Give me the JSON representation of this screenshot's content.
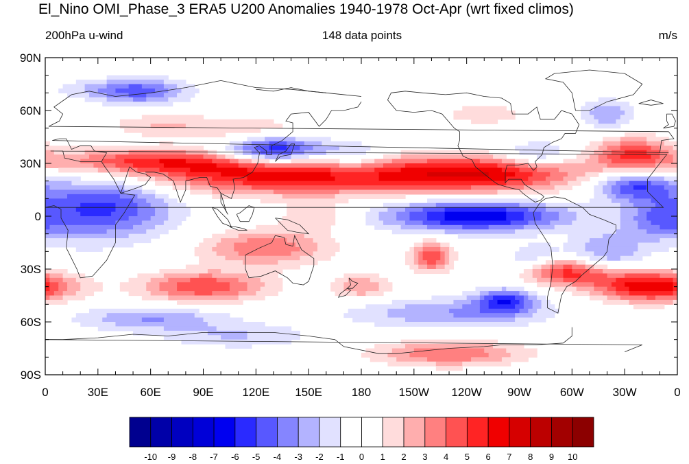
{
  "title": "El_Nino OMI_Phase_3 ERA5 U200 Anomalies 1940-1978 Oct-Apr (wrt fixed climos)",
  "subtitle_left": "200hPa u-wind",
  "subtitle_center": "148 data points",
  "subtitle_right": "m/s",
  "chart_data": {
    "type": "heatmap",
    "title": "El_Nino OMI_Phase_3 ERA5 U200 Anomalies 1940-1978 Oct-Apr (wrt fixed climos)",
    "variable": "200hPa u-wind",
    "units": "m/s",
    "sample_size": "148 data points",
    "x_ticks": [
      "0",
      "30E",
      "60E",
      "90E",
      "120E",
      "150E",
      "180",
      "150W",
      "120W",
      "90W",
      "60W",
      "30W",
      "0"
    ],
    "y_ticks": [
      "90N",
      "60N",
      "30N",
      "0",
      "30S",
      "60S",
      "90S"
    ],
    "xlim": [
      0,
      360
    ],
    "ylim": [
      -90,
      90
    ],
    "colorbar": {
      "labels": [
        "-10",
        "-9",
        "-8",
        "-7",
        "-6",
        "-5",
        "-4",
        "-3",
        "-2",
        "-1",
        "0",
        "1",
        "2",
        "3",
        "4",
        "5",
        "6",
        "7",
        "8",
        "9",
        "10"
      ],
      "colors": [
        "#00008f",
        "#0000a8",
        "#0000c0",
        "#0000d8",
        "#0000f0",
        "#2a2aff",
        "#5858ff",
        "#8585ff",
        "#b3b3ff",
        "#e1e1ff",
        "#ffffff",
        "#ffffff",
        "#ffdcdc",
        "#ffaeae",
        "#ff8080",
        "#ff5252",
        "#ff2424",
        "#f00000",
        "#d60000",
        "#bc0000",
        "#a20000",
        "#8c0000"
      ]
    },
    "anomaly_features": [
      {
        "lon": 130,
        "lat": 37,
        "value": -7,
        "sx": 20,
        "sy": 6
      },
      {
        "lon": 175,
        "lat": 33,
        "value": -3,
        "sx": 14,
        "sy": 6
      },
      {
        "lon": 100,
        "lat": 30,
        "value": 3,
        "sx": 60,
        "sy": 5
      },
      {
        "lon": 140,
        "lat": 22,
        "value": 6,
        "sx": 60,
        "sy": 7
      },
      {
        "lon": 250,
        "lat": 24,
        "value": 6,
        "sx": 40,
        "sy": 7
      },
      {
        "lon": 50,
        "lat": 32,
        "value": 3,
        "sx": 35,
        "sy": 5
      },
      {
        "lon": 335,
        "lat": 35,
        "value": 5,
        "sx": 16,
        "sy": 7
      },
      {
        "lon": 335,
        "lat": 17,
        "value": -5,
        "sx": 16,
        "sy": 6
      },
      {
        "lon": 280,
        "lat": 35,
        "value": -3,
        "sx": 14,
        "sy": 5
      },
      {
        "lon": 320,
        "lat": 58,
        "value": -3,
        "sx": 10,
        "sy": 6
      },
      {
        "lon": 20,
        "lat": 5,
        "value": -3,
        "sx": 25,
        "sy": 14
      },
      {
        "lon": 45,
        "lat": 5,
        "value": -3,
        "sx": 25,
        "sy": 12
      },
      {
        "lon": 245,
        "lat": 0,
        "value": -7,
        "sx": 36,
        "sy": 6
      },
      {
        "lon": 118,
        "lat": 48,
        "value": 2,
        "sx": 25,
        "sy": 6
      },
      {
        "lon": 65,
        "lat": 52,
        "value": 2,
        "sx": 20,
        "sy": 5
      },
      {
        "lon": 250,
        "lat": 58,
        "value": 2,
        "sx": 15,
        "sy": 4
      },
      {
        "lon": 55,
        "lat": 70,
        "value": -3,
        "sx": 18,
        "sy": 6
      },
      {
        "lon": 40,
        "lat": 72,
        "value": -2,
        "sx": 25,
        "sy": 4
      },
      {
        "lon": 125,
        "lat": -18,
        "value": 4,
        "sx": 25,
        "sy": 7
      },
      {
        "lon": 220,
        "lat": -23,
        "value": 5,
        "sx": 8,
        "sy": 6
      },
      {
        "lon": 290,
        "lat": -28,
        "value": 3,
        "sx": 14,
        "sy": 5
      },
      {
        "lon": 300,
        "lat": -33,
        "value": 4,
        "sx": 20,
        "sy": 5
      },
      {
        "lon": 345,
        "lat": -40,
        "value": 7,
        "sx": 22,
        "sy": 6
      },
      {
        "lon": 90,
        "lat": -40,
        "value": 5,
        "sx": 25,
        "sy": 6
      },
      {
        "lon": 180,
        "lat": -40,
        "value": 3,
        "sx": 12,
        "sy": 5
      },
      {
        "lon": 262,
        "lat": -48,
        "value": -5,
        "sx": 12,
        "sy": 5
      },
      {
        "lon": 230,
        "lat": -55,
        "value": -3,
        "sx": 40,
        "sy": 6
      },
      {
        "lon": 280,
        "lat": -25,
        "value": -3,
        "sx": 12,
        "sy": 6
      },
      {
        "lon": 320,
        "lat": -20,
        "value": -3,
        "sx": 15,
        "sy": 8
      },
      {
        "lon": 350,
        "lat": -2,
        "value": -3,
        "sx": 15,
        "sy": 8
      },
      {
        "lon": 60,
        "lat": -58,
        "value": -3,
        "sx": 30,
        "sy": 5
      },
      {
        "lon": 230,
        "lat": -78,
        "value": 4,
        "sx": 30,
        "sy": 5
      },
      {
        "lon": 110,
        "lat": -68,
        "value": -2,
        "sx": 30,
        "sy": 5
      },
      {
        "lon": 155,
        "lat": 0,
        "value": 2,
        "sx": 15,
        "sy": 6
      }
    ]
  }
}
